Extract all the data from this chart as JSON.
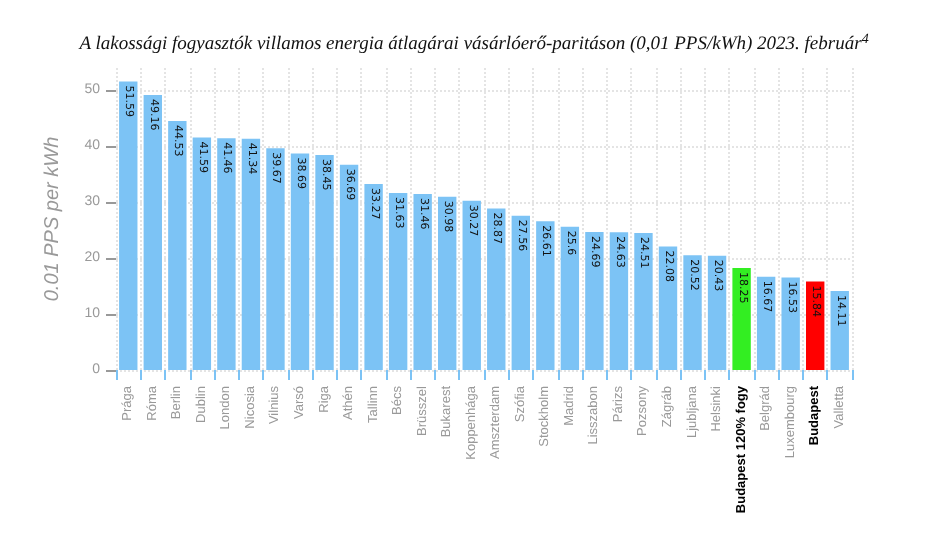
{
  "chart_data": {
    "type": "bar",
    "title": "A lakossági fogyasztók villamos energia átlagárai vásárlóerő-paritáson (0,01 PPS/kWh) 2023. február$^{4}$",
    "ylabel": "0.01 PPS per kWh",
    "categories": [
      "Prága",
      "Róma",
      "Berlin",
      "Dublin",
      "London",
      "Nicosia",
      "Vilnius",
      "Varsó",
      "Riga",
      "Athén",
      "Tallinn",
      "Bécs",
      "Brüsszel",
      "Bukarest",
      "Koppenhága",
      "Amszterdam",
      "Szófia",
      "Stockholm",
      "Madrid",
      "Lisszabon",
      "Párizs",
      "Pozsony",
      "Zágráb",
      "Ljubljana",
      "Helsinki",
      "Budapest 120% fogy",
      "Belgrád",
      "Luxembourg",
      "Budapest",
      "Valletta"
    ],
    "values": [
      51.59,
      49.16,
      44.53,
      41.59,
      41.46,
      41.34,
      39.67,
      38.69,
      38.45,
      36.69,
      33.27,
      31.63,
      31.46,
      30.98,
      30.27,
      28.87,
      27.56,
      26.61,
      25.6,
      24.69,
      24.63,
      24.51,
      22.08,
      20.52,
      20.43,
      18.25,
      16.67,
      16.53,
      15.84,
      14.11
    ],
    "colors": [
      "#7cc3f5",
      "#7cc3f5",
      "#7cc3f5",
      "#7cc3f5",
      "#7cc3f5",
      "#7cc3f5",
      "#7cc3f5",
      "#7cc3f5",
      "#7cc3f5",
      "#7cc3f5",
      "#7cc3f5",
      "#7cc3f5",
      "#7cc3f5",
      "#7cc3f5",
      "#7cc3f5",
      "#7cc3f5",
      "#7cc3f5",
      "#7cc3f5",
      "#7cc3f5",
      "#7cc3f5",
      "#7cc3f5",
      "#7cc3f5",
      "#7cc3f5",
      "#7cc3f5",
      "#7cc3f5",
      "#33ee22",
      "#7cc3f5",
      "#7cc3f5",
      "#ff0000",
      "#7cc3f5"
    ],
    "ylim": [
      0,
      54
    ],
    "yticks": [
      0,
      10,
      20,
      30,
      40,
      50
    ],
    "grid": true,
    "data_labels": true
  }
}
